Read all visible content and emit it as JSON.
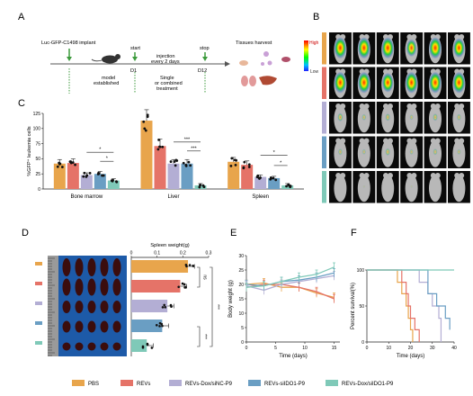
{
  "panel_letters": {
    "A": "A",
    "B": "B",
    "C": "C",
    "D": "D",
    "E": "E",
    "F": "F"
  },
  "panel_a": {
    "implant": "Luc-GFP-C1498 implant",
    "model": [
      "model",
      "established"
    ],
    "start": "start",
    "start_day": "D1",
    "injection": [
      "injection",
      "every 2 days"
    ],
    "treatment": [
      "Single",
      "or combined",
      "treatment"
    ],
    "stop": "stop",
    "stop_day": "D12",
    "harvest": "Tissues harvest"
  },
  "panel_b": {
    "high": "High",
    "low": "Low",
    "group_colors": [
      "#e8a54c",
      "#e57368",
      "#b3aed4",
      "#6a9ec3",
      "#7fc9b8"
    ]
  },
  "colors": {
    "PBS": "#e8a54c",
    "REVs": "#e57368",
    "siNC": "#b3aed4",
    "siIDO1": "#6a9ec3",
    "dox": "#7fc9b8"
  },
  "legend": [
    "PBS",
    "REVs",
    "REVs-Dox/siNC-P9",
    "REVs-siIDO1-P9",
    "REVs-Dox/siIDO1-P9"
  ],
  "chart_data": [
    {
      "type": "bar",
      "panel": "C",
      "ylabel": "%GFP⁺ leukemia cells",
      "ylim": [
        0,
        125
      ],
      "yticks": [
        0,
        25,
        50,
        75,
        100,
        125
      ],
      "categories": [
        "Bone marrow",
        "Liver",
        "Spleen"
      ],
      "series": [
        {
          "name": "PBS",
          "values": [
            42,
            113,
            45
          ]
        },
        {
          "name": "REVs",
          "values": [
            43,
            71,
            40
          ]
        },
        {
          "name": "REVs-Dox/siNC-P9",
          "values": [
            23,
            42,
            20
          ]
        },
        {
          "name": "REVs-siIDO1-P9",
          "values": [
            25,
            42,
            18
          ]
        },
        {
          "name": "REVs-Dox/siIDO1-P9",
          "values": [
            14,
            6,
            6
          ]
        }
      ],
      "significance": [
        {
          "cat": 0,
          "from": 2,
          "to": 4,
          "label": "*"
        },
        {
          "cat": 0,
          "from": 3,
          "to": 4,
          "label": "*"
        },
        {
          "cat": 1,
          "from": 2,
          "to": 4,
          "label": "***"
        },
        {
          "cat": 1,
          "from": 3,
          "to": 4,
          "label": "***"
        },
        {
          "cat": 2,
          "from": 2,
          "to": 4,
          "label": "*"
        },
        {
          "cat": 2,
          "from": 3,
          "to": 4,
          "label": "*"
        }
      ]
    },
    {
      "type": "bar",
      "panel": "D",
      "orientation": "horizontal",
      "xlabel": "Spleen weight(g)",
      "xlim": [
        0,
        0.3
      ],
      "xticks": [
        "0",
        "0.1",
        "0.2",
        "0.3"
      ],
      "categories": [
        "PBS",
        "REVs",
        "REVs-Dox/siNC-P9",
        "REVs-siIDO1-P9",
        "REVs-Dox/siIDO1-P9"
      ],
      "values": [
        0.22,
        0.19,
        0.14,
        0.12,
        0.06
      ],
      "significance": [
        {
          "from": 0,
          "to": 1,
          "label": "ns"
        },
        {
          "from": 0,
          "to": 4,
          "label": "***"
        },
        {
          "from": 3,
          "to": 4,
          "label": "***"
        }
      ]
    },
    {
      "type": "line",
      "panel": "E",
      "xlabel": "Time (days)",
      "ylabel": "Body weight (g)",
      "xlim": [
        0,
        16
      ],
      "ylim": [
        0,
        30
      ],
      "xticks": [
        0,
        5,
        10,
        15
      ],
      "yticks": [
        0,
        5,
        10,
        15,
        20,
        25,
        30
      ],
      "x": [
        0,
        3,
        6,
        9,
        12,
        15
      ],
      "series": [
        {
          "name": "PBS",
          "values": [
            20,
            20.5,
            19,
            19,
            17,
            15.5
          ]
        },
        {
          "name": "REVs",
          "values": [
            19,
            20,
            20,
            19,
            17.5,
            15
          ]
        },
        {
          "name": "REVs-Dox/siNC-P9",
          "values": [
            19.5,
            18,
            20,
            21,
            22,
            23
          ]
        },
        {
          "name": "REVs-siIDO1-P9",
          "values": [
            20,
            19.5,
            21,
            21.5,
            22.5,
            24
          ]
        },
        {
          "name": "REVs-Dox/siIDO1-P9",
          "values": [
            19,
            19.5,
            21,
            22.5,
            23.5,
            26
          ]
        }
      ]
    },
    {
      "type": "line",
      "panel": "F",
      "step": true,
      "xlabel": "Time (days)",
      "ylabel": "Percent survival(%)",
      "xlim": [
        0,
        40
      ],
      "ylim": [
        0,
        100
      ],
      "xticks": [
        0,
        10,
        20,
        30,
        40
      ],
      "yticks": [
        0,
        50,
        100
      ],
      "series": [
        {
          "name": "PBS",
          "points": [
            [
              0,
              100
            ],
            [
              14,
              100
            ],
            [
              14,
              83
            ],
            [
              16,
              83
            ],
            [
              16,
              67
            ],
            [
              18,
              67
            ],
            [
              18,
              50
            ],
            [
              19,
              50
            ],
            [
              19,
              33
            ],
            [
              20,
              33
            ],
            [
              20,
              17
            ],
            [
              21,
              17
            ],
            [
              21,
              0
            ]
          ]
        },
        {
          "name": "REVs",
          "points": [
            [
              0,
              100
            ],
            [
              16,
              100
            ],
            [
              16,
              83
            ],
            [
              18,
              83
            ],
            [
              18,
              67
            ],
            [
              19,
              67
            ],
            [
              19,
              50
            ],
            [
              20,
              50
            ],
            [
              20,
              33
            ],
            [
              22,
              33
            ],
            [
              22,
              17
            ],
            [
              24,
              17
            ],
            [
              24,
              0
            ]
          ]
        },
        {
          "name": "REVs-Dox/siNC-P9",
          "points": [
            [
              0,
              100
            ],
            [
              24,
              100
            ],
            [
              24,
              83
            ],
            [
              28,
              83
            ],
            [
              28,
              67
            ],
            [
              30,
              67
            ],
            [
              30,
              50
            ],
            [
              33,
              50
            ],
            [
              33,
              33
            ],
            [
              34,
              33
            ],
            [
              34,
              0
            ]
          ]
        },
        {
          "name": "REVs-siIDO1-P9",
          "points": [
            [
              0,
              100
            ],
            [
              28,
              100
            ],
            [
              28,
              67
            ],
            [
              32,
              67
            ],
            [
              32,
              50
            ],
            [
              36,
              50
            ],
            [
              36,
              33
            ],
            [
              38,
              33
            ],
            [
              38,
              17
            ]
          ]
        },
        {
          "name": "REVs-Dox/siIDO1-P9",
          "points": [
            [
              0,
              100
            ],
            [
              40,
              100
            ]
          ]
        }
      ]
    }
  ]
}
